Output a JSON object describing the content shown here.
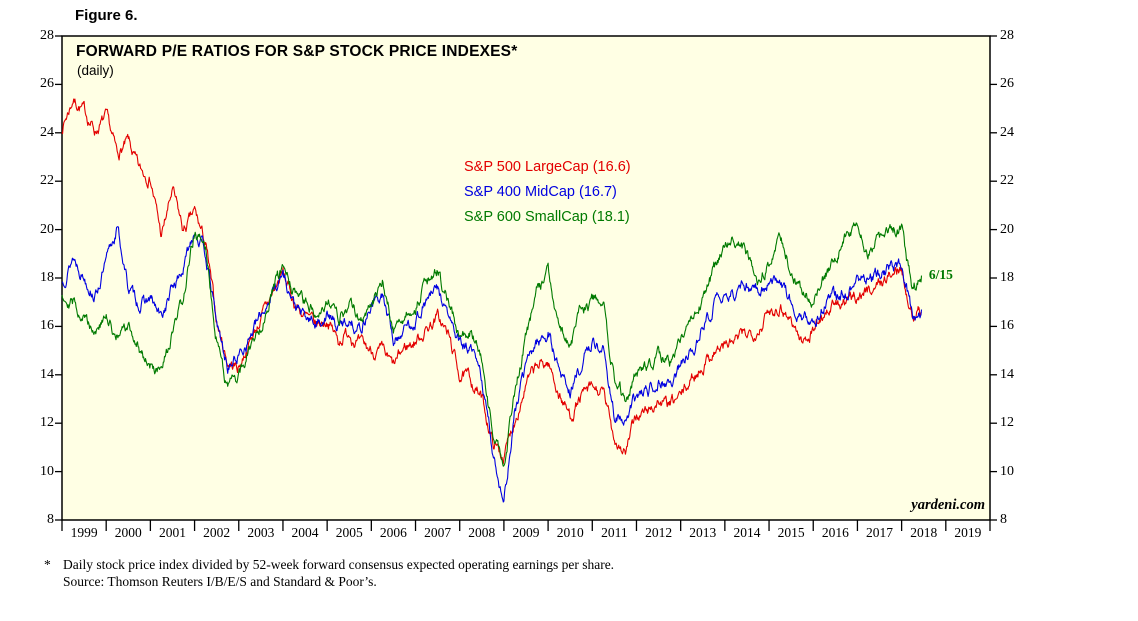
{
  "figure_label": "Figure 6.",
  "chart_data": {
    "type": "line",
    "title": "FORWARD P/E RATIOS FOR S&P STOCK PRICE INDEXES*",
    "subtitle": "(daily)",
    "plot_bg": "#FFFFE4",
    "grid": false,
    "legend_position": "upper-center-left",
    "x_range": [
      1999,
      2020
    ],
    "y_range": [
      8,
      28
    ],
    "y_ticks": [
      8,
      10,
      12,
      14,
      16,
      18,
      20,
      22,
      24,
      26,
      28
    ],
    "x_year_labels": [
      "1999",
      "2000",
      "2001",
      "2002",
      "2003",
      "2004",
      "2005",
      "2006",
      "2007",
      "2008",
      "2009",
      "2010",
      "2011",
      "2012",
      "2013",
      "2014",
      "2015",
      "2016",
      "2017",
      "2018",
      "2019"
    ],
    "x": [
      1999,
      1999.25,
      1999.5,
      1999.75,
      2000,
      2000.25,
      2000.5,
      2000.75,
      2001,
      2001.25,
      2001.5,
      2001.75,
      2002,
      2002.25,
      2002.5,
      2002.75,
      2003,
      2003.25,
      2003.5,
      2003.75,
      2004,
      2004.25,
      2004.5,
      2004.75,
      2005,
      2005.25,
      2005.5,
      2005.75,
      2006,
      2006.25,
      2006.5,
      2006.75,
      2007,
      2007.25,
      2007.5,
      2007.75,
      2008,
      2008.25,
      2008.5,
      2008.75,
      2009,
      2009.25,
      2009.5,
      2009.75,
      2010,
      2010.25,
      2010.5,
      2010.75,
      2011,
      2011.25,
      2011.5,
      2011.75,
      2012,
      2012.25,
      2012.5,
      2012.75,
      2013,
      2013.25,
      2013.5,
      2013.75,
      2014,
      2014.25,
      2014.5,
      2014.75,
      2015,
      2015.25,
      2015.5,
      2015.75,
      2016,
      2016.25,
      2016.5,
      2016.75,
      2017,
      2017.25,
      2017.5,
      2017.75,
      2018,
      2018.25,
      2018.45
    ],
    "series": [
      {
        "name": "S&P 500 LargeCap (16.6)",
        "latest_value": 16.6,
        "color": "#E30000",
        "seed": 7,
        "values": [
          24.2,
          25.4,
          24.9,
          24.1,
          24.6,
          23.1,
          23.6,
          22.4,
          22.2,
          19.7,
          21.6,
          19.9,
          20.7,
          19.4,
          16.2,
          14.5,
          14.3,
          15.4,
          16.3,
          17.3,
          18.2,
          17.0,
          16.4,
          16.0,
          16.3,
          15.4,
          15.8,
          15.2,
          15.0,
          14.9,
          14.3,
          15.1,
          15.4,
          15.9,
          16.4,
          15.6,
          14.0,
          13.8,
          13.0,
          11.2,
          10.6,
          12.2,
          13.6,
          14.3,
          14.5,
          13.2,
          12.3,
          13.1,
          13.4,
          13.2,
          11.4,
          10.8,
          12.3,
          12.5,
          12.9,
          12.7,
          13.1,
          13.8,
          14.4,
          15.0,
          15.2,
          15.4,
          15.7,
          15.9,
          16.6,
          16.9,
          16.3,
          15.3,
          15.9,
          16.6,
          16.9,
          16.9,
          17.3,
          17.5,
          17.8,
          18.1,
          18.4,
          16.5,
          16.6
        ]
      },
      {
        "name": "S&P 400 MidCap (16.7)",
        "latest_value": 16.7,
        "color": "#0000E0",
        "seed": 13,
        "values": [
          17.8,
          18.9,
          18.1,
          17.3,
          18.6,
          20.1,
          17.6,
          16.9,
          17.1,
          16.3,
          17.6,
          18.4,
          20.1,
          19.0,
          16.1,
          14.3,
          14.8,
          15.6,
          16.4,
          17.4,
          18.2,
          16.9,
          16.3,
          16.1,
          16.5,
          15.9,
          16.3,
          15.9,
          16.9,
          17.3,
          15.4,
          15.9,
          16.3,
          17.1,
          17.5,
          16.4,
          15.2,
          15.0,
          13.8,
          10.8,
          8.8,
          12.4,
          14.4,
          15.4,
          15.7,
          14.2,
          13.3,
          14.4,
          15.4,
          15.0,
          12.4,
          11.9,
          13.1,
          13.3,
          13.9,
          13.6,
          14.3,
          15.1,
          15.9,
          16.9,
          17.2,
          17.4,
          17.7,
          17.5,
          17.9,
          18.0,
          17.1,
          16.1,
          16.3,
          16.9,
          17.3,
          17.4,
          17.9,
          18.0,
          18.1,
          18.4,
          18.6,
          16.4,
          16.7
        ]
      },
      {
        "name": "S&P 600 SmallCap (18.1)",
        "latest_value": 18.1,
        "color": "#007A00",
        "seed": 29,
        "values": [
          17.4,
          17.0,
          16.4,
          15.9,
          16.3,
          15.6,
          15.9,
          15.1,
          14.4,
          14.0,
          15.6,
          17.2,
          19.9,
          19.2,
          15.6,
          13.5,
          13.9,
          15.1,
          16.1,
          17.4,
          18.4,
          17.3,
          16.9,
          16.7,
          17.1,
          16.3,
          16.9,
          16.3,
          16.9,
          17.9,
          15.9,
          16.4,
          16.9,
          17.9,
          18.3,
          16.9,
          15.5,
          15.8,
          14.6,
          11.5,
          10.2,
          13.4,
          15.5,
          17.4,
          18.3,
          16.1,
          15.1,
          16.6,
          17.1,
          16.9,
          13.9,
          12.9,
          14.1,
          14.3,
          14.9,
          14.4,
          15.3,
          16.1,
          17.1,
          18.3,
          19.3,
          19.6,
          18.9,
          18.1,
          18.6,
          19.6,
          18.4,
          17.3,
          17.1,
          17.9,
          18.9,
          19.8,
          20.1,
          19.1,
          19.6,
          20.1,
          19.9,
          17.5,
          18.1
        ]
      }
    ],
    "annotation": {
      "text": "6/15",
      "x": 2018.55,
      "y": 18.1,
      "color": "#007A00"
    },
    "branding": "yardeni.com"
  },
  "footnote": {
    "marker": "*",
    "line1": "Daily stock price index divided by 52-week forward consensus expected operating earnings per share.",
    "line2": "Source: Thomson Reuters I/B/E/S and Standard & Poor’s."
  }
}
